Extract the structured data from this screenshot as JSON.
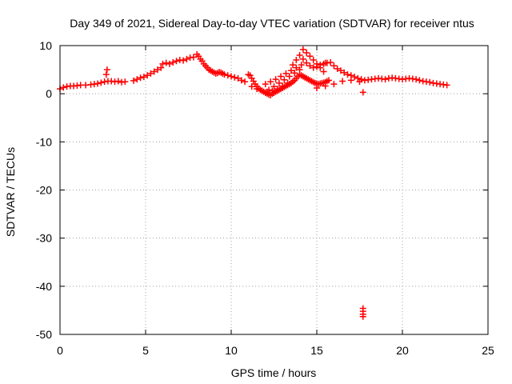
{
  "chart_data": {
    "type": "scatter",
    "title": "Day 349 of 2021, Sidereal Day-to-day VTEC variation (SDTVAR) for receiver ntus",
    "xlabel": "GPS time / hours",
    "ylabel": "SDTVAR / TECUs",
    "xlim": [
      0,
      25
    ],
    "ylim": [
      -50,
      10
    ],
    "xticks": [
      0,
      5,
      10,
      15,
      20,
      25
    ],
    "yticks": [
      10,
      0,
      -10,
      -20,
      -30,
      -40,
      -50
    ],
    "grid": true,
    "marker": "+",
    "color": "#ff0000",
    "series": [
      {
        "name": "SDTVAR",
        "x": [
          0.0,
          0.2,
          0.4,
          0.6,
          0.8,
          1.0,
          1.2,
          1.5,
          1.8,
          2.0,
          2.2,
          2.4,
          2.6,
          2.7,
          2.75,
          2.8,
          3.0,
          3.2,
          3.4,
          3.6,
          3.8,
          4.3,
          4.5,
          4.7,
          4.9,
          5.1,
          5.3,
          5.5,
          5.7,
          5.9,
          6.0,
          6.2,
          6.4,
          6.6,
          6.8,
          7.0,
          7.2,
          7.4,
          7.6,
          7.8,
          8.0,
          8.1,
          8.2,
          8.3,
          8.4,
          8.5,
          8.6,
          8.7,
          8.8,
          8.9,
          9.0,
          9.1,
          9.2,
          9.3,
          9.4,
          9.5,
          9.6,
          9.8,
          10.0,
          10.2,
          10.4,
          10.6,
          10.8,
          11.0,
          11.1,
          11.2,
          11.3,
          11.4,
          11.5,
          11.6,
          11.7,
          11.8,
          11.9,
          12.0,
          12.1,
          12.2,
          12.3,
          12.4,
          12.5,
          12.6,
          12.7,
          12.8,
          12.9,
          13.0,
          13.1,
          13.2,
          13.3,
          13.4,
          13.5,
          13.6,
          13.7,
          13.8,
          13.9,
          14.0,
          14.1,
          14.2,
          14.3,
          14.4,
          14.5,
          14.6,
          14.7,
          14.8,
          14.9,
          15.0,
          15.1,
          15.2,
          15.3,
          15.4,
          15.5,
          15.6,
          15.7,
          14.2,
          14.4,
          14.6,
          14.8,
          15.0,
          15.2,
          15.4,
          13.6,
          13.8,
          14.0,
          14.2,
          14.4,
          14.6,
          14.8,
          15.0,
          15.2,
          15.4,
          15.5,
          15.6,
          15.8,
          16.0,
          16.2,
          16.4,
          16.6,
          16.8,
          17.0,
          17.2,
          17.4,
          17.6,
          17.8,
          18.0,
          18.2,
          18.4,
          18.6,
          18.8,
          19.0,
          19.2,
          19.4,
          19.6,
          19.8,
          20.0,
          20.2,
          20.4,
          20.6,
          20.8,
          21.0,
          21.2,
          21.4,
          21.6,
          21.8,
          22.0,
          22.2,
          22.4,
          22.6,
          15.0,
          15.5,
          16.0,
          16.5,
          17.0,
          17.5,
          17.7,
          17.7,
          17.7,
          17.7,
          17.7,
          12.0,
          12.3,
          12.6,
          12.9,
          13.2,
          13.5,
          13.8,
          14.1,
          12.2,
          12.5,
          12.8,
          13.1,
          13.4,
          13.7,
          14.0,
          11.2,
          11.5,
          11.8,
          12.1,
          12.4,
          12.7,
          13.0,
          13.3
        ],
        "y": [
          1.0,
          1.3,
          1.5,
          1.6,
          1.6,
          1.7,
          1.8,
          1.8,
          1.9,
          2.0,
          2.1,
          2.3,
          2.5,
          4.0,
          5.0,
          2.6,
          2.6,
          2.5,
          2.6,
          2.4,
          2.5,
          2.7,
          3.0,
          3.3,
          3.5,
          3.8,
          4.2,
          4.6,
          5.0,
          5.4,
          6.2,
          6.4,
          6.2,
          6.5,
          6.8,
          7.0,
          6.9,
          7.2,
          7.5,
          7.6,
          8.2,
          7.8,
          7.2,
          6.8,
          6.2,
          5.8,
          5.4,
          5.0,
          4.8,
          4.6,
          4.4,
          4.2,
          4.3,
          4.5,
          4.4,
          4.2,
          4.0,
          3.8,
          3.6,
          3.4,
          3.2,
          2.8,
          2.5,
          4.0,
          3.8,
          3.2,
          2.6,
          2.0,
          1.5,
          1.1,
          0.8,
          0.6,
          0.4,
          0.2,
          0.0,
          -0.2,
          -0.3,
          0.0,
          0.2,
          0.4,
          0.6,
          0.8,
          1.0,
          1.2,
          1.4,
          1.6,
          1.8,
          2.0,
          2.2,
          2.5,
          2.8,
          3.2,
          3.6,
          4.0,
          3.8,
          3.6,
          3.4,
          3.2,
          3.0,
          2.8,
          2.6,
          2.4,
          2.2,
          2.1,
          2.0,
          2.1,
          2.2,
          2.3,
          2.4,
          2.6,
          2.8,
          9.2,
          8.5,
          7.8,
          7.0,
          6.2,
          5.4,
          4.6,
          6.0,
          7.0,
          8.0,
          7.2,
          6.4,
          5.8,
          5.4,
          5.6,
          6.0,
          6.2,
          6.4,
          6.4,
          6.5,
          5.8,
          5.2,
          4.8,
          4.4,
          4.0,
          3.8,
          3.5,
          3.2,
          3.0,
          2.8,
          2.9,
          3.0,
          3.1,
          3.2,
          3.1,
          3.0,
          3.2,
          3.3,
          3.2,
          3.1,
          3.0,
          3.1,
          3.2,
          3.1,
          3.0,
          2.8,
          2.6,
          2.5,
          2.4,
          2.2,
          2.1,
          2.0,
          1.9,
          1.8,
          1.2,
          1.6,
          2.0,
          2.6,
          2.8,
          2.5,
          0.3,
          -44.6,
          -45.2,
          -45.8,
          -46.3,
          2.0,
          2.5,
          3.0,
          3.6,
          4.2,
          4.8,
          5.4,
          6.0,
          0.8,
          1.5,
          2.2,
          2.9,
          3.6,
          4.3,
          5.0,
          1.5,
          1.0,
          0.6,
          0.4,
          0.6,
          1.0,
          1.6,
          2.2
        ]
      }
    ]
  }
}
